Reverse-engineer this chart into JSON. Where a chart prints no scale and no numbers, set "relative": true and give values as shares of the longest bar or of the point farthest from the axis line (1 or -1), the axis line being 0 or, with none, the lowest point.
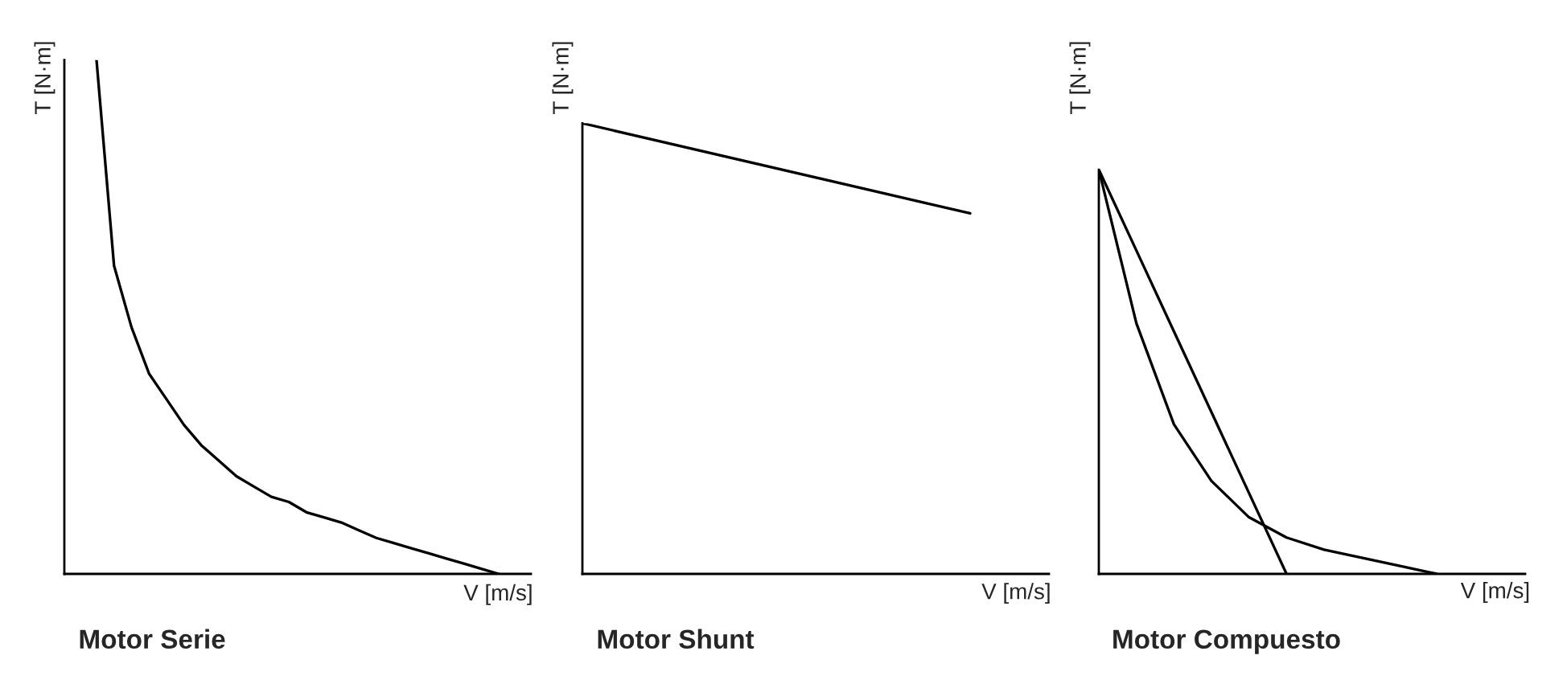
{
  "chart_data": [
    {
      "type": "line",
      "title": "Motor Serie",
      "xlabel": "V [m/s]",
      "ylabel": "T [N·m]",
      "relative": true,
      "categories": [
        null,
        null,
        null,
        null,
        null,
        null,
        null,
        null,
        null,
        null,
        null,
        null,
        null,
        null,
        null,
        null,
        null,
        null,
        null,
        null,
        null,
        null,
        null,
        null
      ],
      "series": [
        {
          "color": "#000000",
          "values": [
            1.0,
            0.6,
            0.48,
            0.39,
            0.34,
            0.29,
            0.25,
            0.22,
            0.19,
            0.17,
            0.15,
            0.14,
            0.12,
            0.11,
            0.1,
            0.085,
            0.07,
            0.06,
            0.05,
            0.04,
            0.03,
            0.02,
            0.01,
            0
          ]
        }
      ]
    },
    {
      "type": "line",
      "title": "Motor Shunt",
      "xlabel": "V [m/s]",
      "ylabel": "T [N·m]",
      "relative": true,
      "categories": [
        null,
        null
      ],
      "series": [
        {
          "color": "#000000",
          "values": [
            1.0,
            0.8
          ]
        }
      ]
    },
    {
      "type": "line",
      "title": "Motor Compuesto",
      "xlabel": "V [m/s]",
      "ylabel": "T [N·m]",
      "relative": true,
      "categories": [
        null,
        null,
        null,
        null,
        null,
        null,
        null,
        null,
        null,
        null
      ],
      "series": [
        {
          "color": "#000000",
          "values": [
            1.0,
            0.8,
            0.6,
            0.4,
            0.2,
            0,
            null,
            null,
            null,
            null
          ]
        },
        {
          "color": "#000000",
          "values": [
            1.0,
            0.62,
            0.37,
            0.23,
            0.14,
            0.09,
            0.06,
            0.04,
            0.02,
            0
          ]
        }
      ]
    }
  ]
}
